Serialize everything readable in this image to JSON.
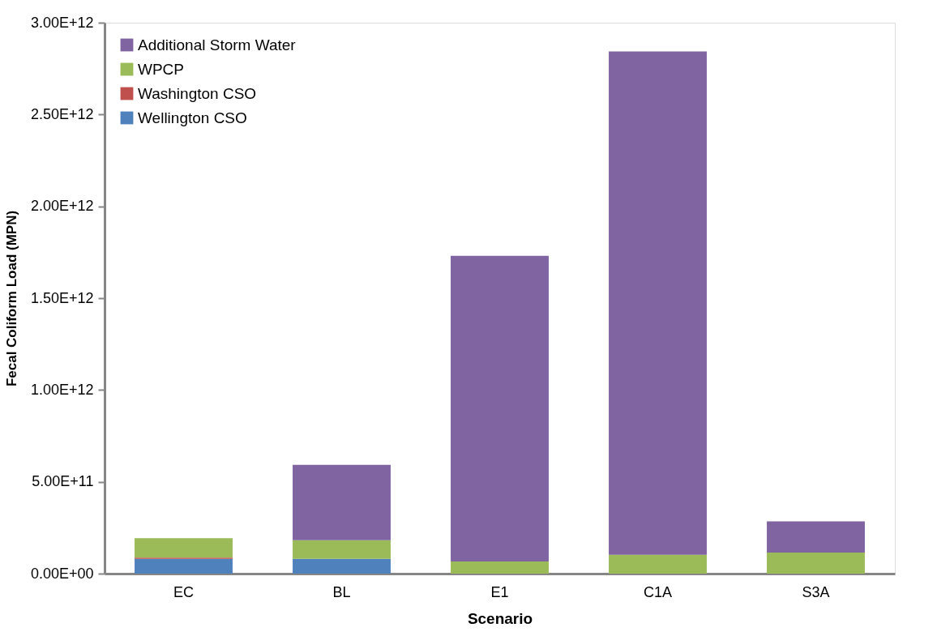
{
  "chart_data": {
    "type": "bar",
    "stacked": true,
    "xlabel": "Scenario",
    "ylabel": "Fecal Coliform Load (MPN)",
    "categories": [
      "EC",
      "BL",
      "E1",
      "C1A",
      "S3A"
    ],
    "series": [
      {
        "name": "Wellington CSO",
        "color": "#4f81bd",
        "values": [
          81000000000,
          80000000000,
          0,
          0,
          0
        ]
      },
      {
        "name": "Washington CSO",
        "color": "#c0504d",
        "values": [
          6000000000,
          0,
          0,
          0,
          0
        ]
      },
      {
        "name": "WPCP",
        "color": "#9bbb59",
        "values": [
          106000000000,
          102000000000,
          66000000000,
          103000000000,
          115000000000
        ]
      },
      {
        "name": "Additional Storm Water",
        "color": "#8064a2",
        "values": [
          0,
          410000000000,
          1664000000000,
          2740000000000,
          170000000000
        ]
      }
    ],
    "ylim": [
      0,
      3000000000000
    ],
    "yticks": [
      {
        "value": 0,
        "label": "0.00E+00"
      },
      {
        "value": 500000000000,
        "label": "5.00E+11"
      },
      {
        "value": 1000000000000,
        "label": "1.00E+12"
      },
      {
        "value": 1500000000000,
        "label": "1.50E+12"
      },
      {
        "value": 2000000000000,
        "label": "2.00E+12"
      },
      {
        "value": 2500000000000,
        "label": "2.50E+12"
      },
      {
        "value": 3000000000000,
        "label": "3.00E+12"
      }
    ],
    "grid": false,
    "legend": "top left"
  }
}
